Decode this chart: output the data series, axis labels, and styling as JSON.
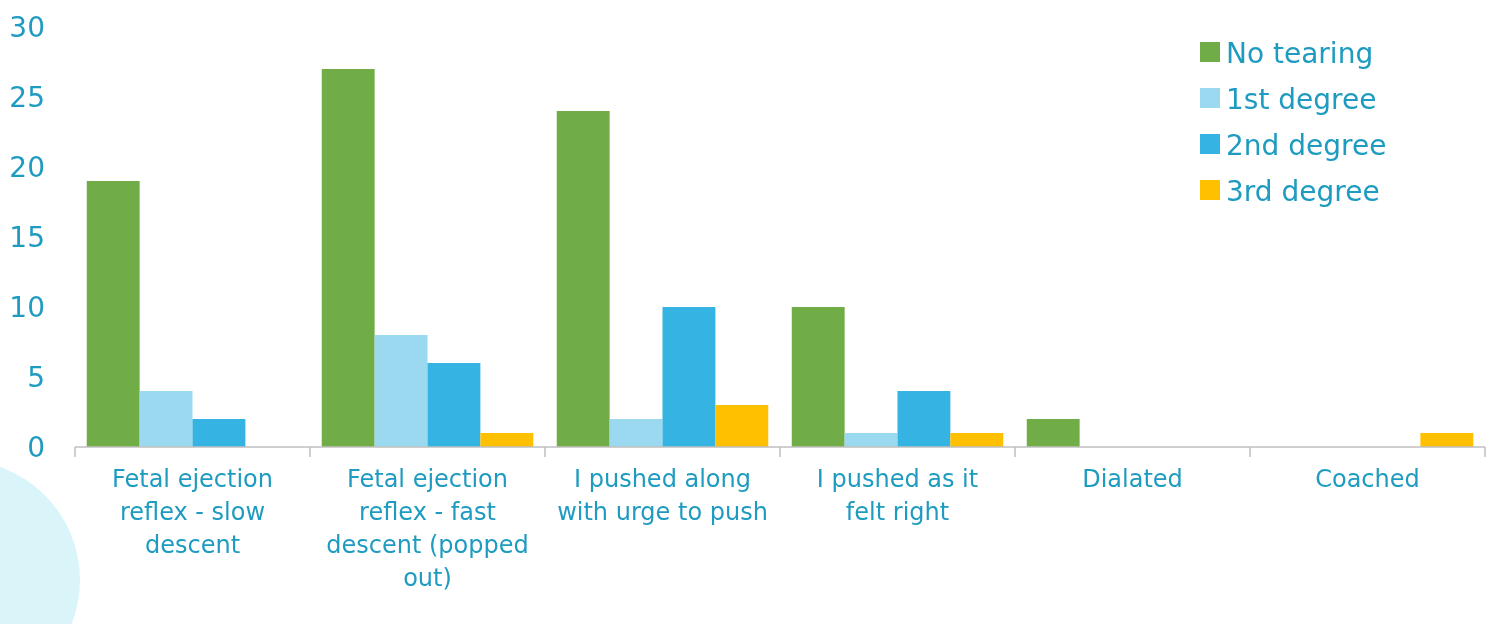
{
  "chart_data": {
    "type": "bar",
    "categories": [
      "Fetal ejection reflex - slow descent",
      "Fetal ejection reflex - fast descent (popped out)",
      "I pushed along with urge to push",
      "I pushed as it felt right",
      "Dialated",
      "Coached"
    ],
    "series": [
      {
        "name": "No tearing",
        "color": "#70ad47",
        "values": [
          19,
          27,
          24,
          10,
          2,
          0
        ]
      },
      {
        "name": "1st degree",
        "color": "#9ad9f0",
        "values": [
          4,
          8,
          2,
          1,
          0,
          0
        ]
      },
      {
        "name": "2nd degree",
        "color": "#35b3e2",
        "values": [
          2,
          6,
          10,
          4,
          0,
          0
        ]
      },
      {
        "name": "3rd degree",
        "color": "#ffc000",
        "values": [
          0,
          1,
          3,
          1,
          0,
          1
        ]
      }
    ],
    "ylim": [
      0,
      30
    ],
    "yticks": [
      0,
      5,
      10,
      15,
      20,
      25,
      30
    ],
    "grid": false,
    "legend": "top right"
  }
}
